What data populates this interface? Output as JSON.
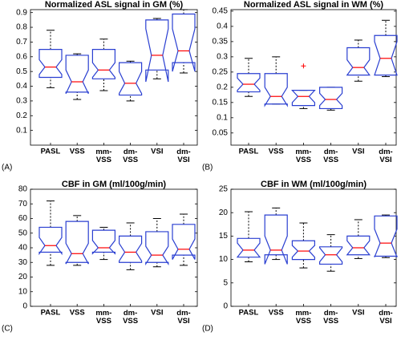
{
  "chart_data": [
    {
      "type": "box",
      "title": "Normalized ASL signal in GM (%)",
      "panel_label": "(A)",
      "categories": [
        "PASL",
        "VSS",
        "mm-\nVSS",
        "dm-\nVSS",
        "VSI",
        "dm-\nVSI"
      ],
      "whisker_low": [
        0.39,
        0.31,
        0.37,
        0.3,
        0.45,
        0.49
      ],
      "q1": [
        0.46,
        0.36,
        0.45,
        0.34,
        0.51,
        0.56
      ],
      "median": [
        0.53,
        0.43,
        0.51,
        0.42,
        0.61,
        0.64
      ],
      "q3": [
        0.65,
        0.61,
        0.65,
        0.56,
        0.85,
        0.89
      ],
      "whisker_high": [
        0.78,
        0.62,
        0.72,
        0.57,
        0.86,
        0.92
      ],
      "notch_low": [
        0.48,
        0.35,
        0.46,
        0.35,
        0.43,
        0.5
      ],
      "notch_high": [
        0.58,
        0.51,
        0.56,
        0.5,
        0.79,
        0.79
      ],
      "outliers": [
        [],
        [],
        [],
        [],
        [],
        []
      ],
      "box_color": "#2a3fd1",
      "median_color": "#ff0000",
      "ylim": [
        0,
        0.92
      ],
      "yticks": [
        0.1,
        0.2,
        0.3,
        0.4,
        0.5,
        0.6,
        0.7,
        0.8,
        0.9
      ]
    },
    {
      "type": "box",
      "title": "Normalized ASL signal in WM (%)",
      "panel_label": "(B)",
      "categories": [
        "PASL",
        "VSS",
        "mm-\nVSS",
        "dm-\nVSS",
        "VSI",
        "dm-\nVSI"
      ],
      "whisker_low": [
        0.17,
        0.145,
        0.13,
        0.125,
        0.22,
        0.235
      ],
      "q1": [
        0.185,
        0.145,
        0.14,
        0.13,
        0.24,
        0.24
      ],
      "median": [
        0.21,
        0.17,
        0.17,
        0.16,
        0.265,
        0.295
      ],
      "q3": [
        0.245,
        0.245,
        0.19,
        0.2,
        0.33,
        0.37
      ],
      "whisker_high": [
        0.295,
        0.3,
        0.19,
        0.2,
        0.355,
        0.42
      ],
      "notch_low": [
        0.19,
        0.14,
        0.15,
        0.14,
        0.24,
        0.24
      ],
      "notch_high": [
        0.23,
        0.2,
        0.19,
        0.18,
        0.29,
        0.35
      ],
      "outliers": [
        [],
        [],
        [
          0.27
        ],
        [],
        [],
        []
      ],
      "box_color": "#2a3fd1",
      "median_color": "#ff0000",
      "ylim": [
        0.01,
        0.455
      ],
      "yticks": [
        0.05,
        0.1,
        0.15,
        0.2,
        0.25,
        0.3,
        0.35,
        0.4,
        0.45
      ]
    },
    {
      "type": "box",
      "title": "CBF in GM (ml/100g/min)",
      "panel_label": "(C)",
      "categories": [
        "PASL",
        "VSS",
        "mm-\nVSS",
        "dm-\nVSS",
        "VSI",
        "dm-\nVSI"
      ],
      "whisker_low": [
        28,
        28,
        32,
        25,
        27,
        28
      ],
      "q1": [
        37,
        30,
        37,
        30,
        30,
        35
      ],
      "median": [
        41.5,
        36,
        40,
        37,
        35,
        39
      ],
      "q3": [
        54,
        58,
        52,
        48,
        51,
        56
      ],
      "whisker_high": [
        72,
        62,
        54,
        57,
        60,
        63
      ],
      "notch_low": [
        36,
        29,
        36,
        31,
        29,
        32
      ],
      "notch_high": [
        47,
        43,
        45,
        43,
        41,
        46
      ],
      "outliers": [
        [],
        [],
        [],
        [],
        [],
        []
      ],
      "box_color": "#2a3fd1",
      "median_color": "#ff0000",
      "ylim": [
        0,
        80
      ],
      "yticks": [
        0,
        10,
        20,
        30,
        40,
        50,
        60,
        70,
        80
      ]
    },
    {
      "type": "box",
      "title": "CBF in WM (ml/100g/min)",
      "panel_label": "(D)",
      "categories": [
        "PASL",
        "VSS",
        "mm-\nVSS",
        "dm-\nVSS",
        "VSI",
        "dm-\nVSI"
      ],
      "whisker_low": [
        9.5,
        10,
        8.2,
        7.5,
        10.2,
        10.4
      ],
      "q1": [
        10.5,
        11,
        10,
        9,
        11,
        10.7
      ],
      "median": [
        12,
        12,
        11.8,
        11,
        12.5,
        13.5
      ],
      "q3": [
        14.5,
        19.5,
        14,
        12.7,
        15,
        19.3
      ],
      "whisker_high": [
        20.2,
        21,
        17.8,
        15.3,
        18.5,
        19.5
      ],
      "notch_low": [
        10.5,
        9,
        10.5,
        9.5,
        11,
        10.5
      ],
      "notch_high": [
        13.5,
        15,
        13,
        12.5,
        14,
        16.5
      ],
      "outliers": [
        [],
        [],
        [],
        [],
        [],
        []
      ],
      "box_color": "#2a3fd1",
      "median_color": "#ff0000",
      "ylim": [
        0,
        25
      ],
      "yticks": [
        0,
        5,
        10,
        15,
        20,
        25
      ]
    }
  ]
}
